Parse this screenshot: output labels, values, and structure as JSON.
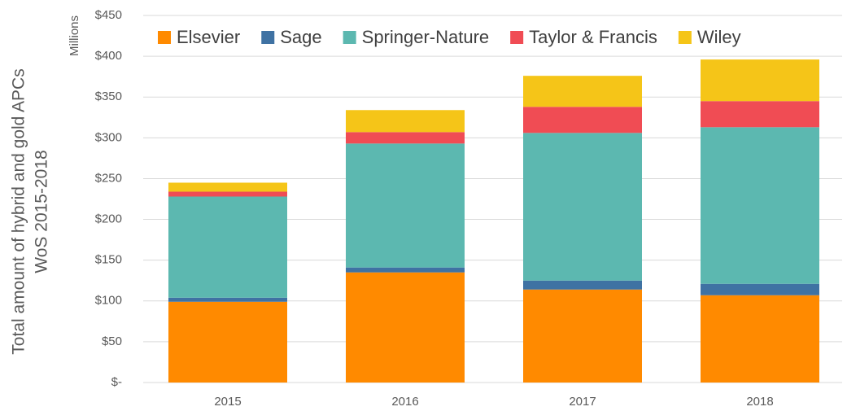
{
  "chart_data": {
    "type": "stacked_bar",
    "y_label": [
      "Total amount of hybrid and gold APCs",
      "WoS 2015-2018"
    ],
    "y_unit": "Millions",
    "categories": [
      "2015",
      "2016",
      "2017",
      "2018"
    ],
    "series": [
      {
        "name": "Elsevier",
        "color": "#ff8a00",
        "values": [
          99,
          135,
          114,
          107
        ]
      },
      {
        "name": "Sage",
        "color": "#3f72a3",
        "values": [
          5,
          6,
          11,
          14
        ]
      },
      {
        "name": "Springer-Nature",
        "color": "#5cb8b0",
        "values": [
          124,
          152,
          181,
          192
        ]
      },
      {
        "name": "Taylor & Francis",
        "color": "#f04c54",
        "values": [
          6,
          14,
          32,
          32
        ]
      },
      {
        "name": "Wiley",
        "color": "#f5c518",
        "values": [
          11,
          27,
          38,
          51
        ]
      }
    ],
    "ylim": [
      0,
      450
    ],
    "yticks": [
      {
        "value": 0,
        "label": "$-"
      },
      {
        "value": 50,
        "label": "$50"
      },
      {
        "value": 100,
        "label": "$100"
      },
      {
        "value": 150,
        "label": "$150"
      },
      {
        "value": 200,
        "label": "$200"
      },
      {
        "value": 250,
        "label": "$250"
      },
      {
        "value": 300,
        "label": "$300"
      },
      {
        "value": 350,
        "label": "$350"
      },
      {
        "value": 400,
        "label": "$400"
      },
      {
        "value": 450,
        "label": "$450"
      }
    ],
    "grid": true,
    "legend": "top"
  }
}
